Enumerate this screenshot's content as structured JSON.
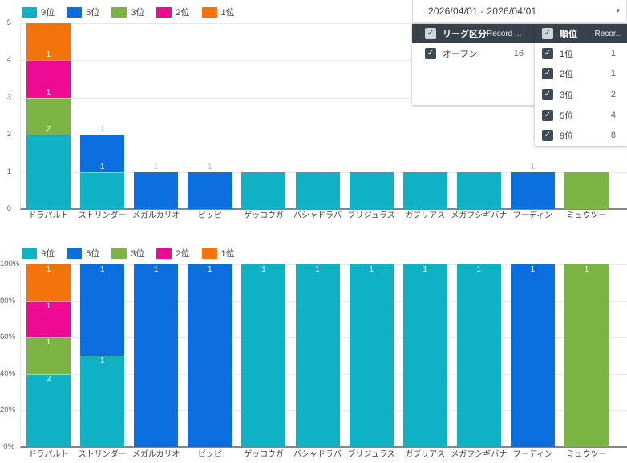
{
  "icons": {
    "check": "✓",
    "caret": "▾"
  },
  "colors": {
    "rank9": "#0FB2C5",
    "rank5": "#0C6FE0",
    "rank3": "#7BB443",
    "rank2": "#EF0A94",
    "rank1": "#F5730B"
  },
  "filters": {
    "date_range": {
      "label": "2026/04/01 - 2026/04/01"
    },
    "panels": [
      {
        "title": "リーグ区分",
        "records_header": "Record ...",
        "header_checked": true,
        "rows": [
          {
            "label": "オープン",
            "count": "16",
            "checked": true
          }
        ]
      },
      {
        "title": "順位",
        "records_header": "Recor...",
        "header_checked": true,
        "rows": [
          {
            "label": "1位",
            "count": "1",
            "checked": true
          },
          {
            "label": "2位",
            "count": "1",
            "checked": true
          },
          {
            "label": "3位",
            "count": "2",
            "checked": true
          },
          {
            "label": "5位",
            "count": "4",
            "checked": true
          },
          {
            "label": "9位",
            "count": "8",
            "checked": true
          }
        ]
      }
    ]
  },
  "chart_data": [
    {
      "type": "bar",
      "stacked": true,
      "percent": false,
      "title": "",
      "xlabel": "",
      "ylabel": "",
      "ylim": [
        0,
        5
      ],
      "legend_position": "top-left",
      "grid": true,
      "categories": [
        "ドラパルト",
        "ストリンダー",
        "メガルカリオ",
        "ピッピ",
        "ゲッコウガ",
        "バシャドラバ",
        "ブリジュラス",
        "ガブリアス",
        "メガフシギバナ",
        "フーディン",
        "ミュウツー"
      ],
      "series": [
        {
          "name": "9位",
          "color_key": "rank9",
          "values": [
            2,
            1,
            0,
            0,
            1,
            1,
            1,
            1,
            1,
            0,
            0
          ]
        },
        {
          "name": "5位",
          "color_key": "rank5",
          "values": [
            0,
            1,
            1,
            1,
            0,
            0,
            0,
            0,
            0,
            1,
            0
          ]
        },
        {
          "name": "3位",
          "color_key": "rank3",
          "values": [
            1,
            0,
            0,
            0,
            0,
            0,
            0,
            0,
            0,
            0,
            1
          ]
        },
        {
          "name": "2位",
          "color_key": "rank2",
          "values": [
            1,
            0,
            0,
            0,
            0,
            0,
            0,
            0,
            0,
            0,
            0
          ]
        },
        {
          "name": "1位",
          "color_key": "rank1",
          "values": [
            1,
            0,
            0,
            0,
            0,
            0,
            0,
            0,
            0,
            0,
            0
          ]
        }
      ],
      "yticks": [
        {
          "v": 0,
          "label": "0"
        },
        {
          "v": 1,
          "label": "1"
        },
        {
          "v": 2,
          "label": "2"
        },
        {
          "v": 3,
          "label": "3"
        },
        {
          "v": 4,
          "label": "4"
        },
        {
          "v": 5,
          "label": "5"
        }
      ],
      "visible_labels": [
        {
          "bar": 0,
          "at": 2,
          "text": "2",
          "style": "in"
        },
        {
          "bar": 0,
          "at": 3,
          "text": "1",
          "style": "in"
        },
        {
          "bar": 0,
          "at": 4,
          "text": "1",
          "style": "in"
        },
        {
          "bar": 1,
          "at": 1,
          "text": "1",
          "style": "in"
        },
        {
          "bar": 1,
          "at": 2,
          "text": "1",
          "style": "out"
        },
        {
          "bar": 2,
          "at": 1,
          "text": "1",
          "style": "out"
        },
        {
          "bar": 3,
          "at": 1,
          "text": "1",
          "style": "out"
        },
        {
          "bar": 9,
          "at": 1,
          "text": "1",
          "style": "out"
        }
      ]
    },
    {
      "type": "bar",
      "stacked": true,
      "percent": true,
      "title": "",
      "xlabel": "",
      "ylabel": "",
      "ylim": [
        0,
        100
      ],
      "legend_position": "top-left",
      "grid": true,
      "categories": [
        "ドラパルト",
        "ストリンダー",
        "メガルカリオ",
        "ピッピ",
        "ゲッコウガ",
        "バシャドラバ",
        "ブリジュラス",
        "ガブリアス",
        "メガフシギバナ",
        "フーディン",
        "ミュウツー"
      ],
      "series": [
        {
          "name": "9位",
          "color_key": "rank9",
          "values": [
            2,
            1,
            0,
            0,
            1,
            1,
            1,
            1,
            1,
            0,
            0
          ]
        },
        {
          "name": "5位",
          "color_key": "rank5",
          "values": [
            0,
            1,
            1,
            1,
            0,
            0,
            0,
            0,
            0,
            1,
            0
          ]
        },
        {
          "name": "3位",
          "color_key": "rank3",
          "values": [
            1,
            0,
            0,
            0,
            0,
            0,
            0,
            0,
            0,
            0,
            1
          ]
        },
        {
          "name": "2位",
          "color_key": "rank2",
          "values": [
            1,
            0,
            0,
            0,
            0,
            0,
            0,
            0,
            0,
            0,
            0
          ]
        },
        {
          "name": "1位",
          "color_key": "rank1",
          "values": [
            1,
            0,
            0,
            0,
            0,
            0,
            0,
            0,
            0,
            0,
            0
          ]
        }
      ],
      "yticks": [
        {
          "v": 0,
          "label": "0%"
        },
        {
          "v": 20,
          "label": "20%"
        },
        {
          "v": 40,
          "label": "40%"
        },
        {
          "v": 60,
          "label": "60%"
        },
        {
          "v": 80,
          "label": "80%"
        },
        {
          "v": 100,
          "label": "100%"
        }
      ],
      "visible_labels": [
        {
          "bar": 0,
          "at": 40,
          "text": "2",
          "style": "in"
        },
        {
          "bar": 0,
          "at": 60,
          "text": "1",
          "style": "in"
        },
        {
          "bar": 0,
          "at": 80,
          "text": "1",
          "style": "in"
        },
        {
          "bar": 0,
          "at": 100,
          "text": "1",
          "style": "in"
        },
        {
          "bar": 1,
          "at": 50,
          "text": "1",
          "style": "in"
        },
        {
          "bar": 1,
          "at": 100,
          "text": "1",
          "style": "in"
        },
        {
          "bar": 2,
          "at": 100,
          "text": "1",
          "style": "in"
        },
        {
          "bar": 3,
          "at": 100,
          "text": "1",
          "style": "in"
        },
        {
          "bar": 4,
          "at": 100,
          "text": "1",
          "style": "in"
        },
        {
          "bar": 5,
          "at": 100,
          "text": "1",
          "style": "in"
        },
        {
          "bar": 6,
          "at": 100,
          "text": "1",
          "style": "in"
        },
        {
          "bar": 7,
          "at": 100,
          "text": "1",
          "style": "in"
        },
        {
          "bar": 8,
          "at": 100,
          "text": "1",
          "style": "in"
        },
        {
          "bar": 9,
          "at": 100,
          "text": "1",
          "style": "in"
        },
        {
          "bar": 10,
          "at": 100,
          "text": "1",
          "style": "in"
        }
      ]
    }
  ]
}
